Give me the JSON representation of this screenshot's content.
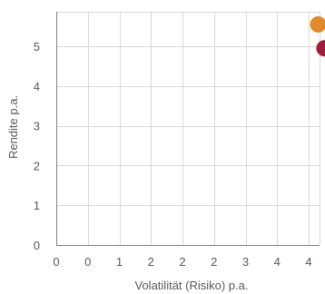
{
  "chart_data": {
    "type": "scatter",
    "title": "",
    "xlabel": "Volatilität (Risiko) p.a.",
    "ylabel": "Rendite p.a.",
    "xlim": [
      0,
      4.4
    ],
    "ylim": [
      0,
      5.85
    ],
    "x_ticks": [
      0,
      0.5,
      1,
      1.5,
      2,
      2.5,
      3,
      3.5,
      4
    ],
    "x_tick_labels": [
      "0",
      "0",
      "1",
      "2",
      "2",
      "2",
      "3",
      "4",
      "4"
    ],
    "y_ticks": [
      0,
      1,
      2,
      3,
      4,
      5
    ],
    "y_tick_labels": [
      "0",
      "1",
      "2",
      "3",
      "4",
      "5"
    ],
    "grid": true,
    "legend": "none",
    "points": [
      {
        "x": 4.15,
        "y": 5.55,
        "color": "#e08a2c"
      },
      {
        "x": 4.25,
        "y": 4.95,
        "color": "#a01e3c"
      }
    ]
  }
}
